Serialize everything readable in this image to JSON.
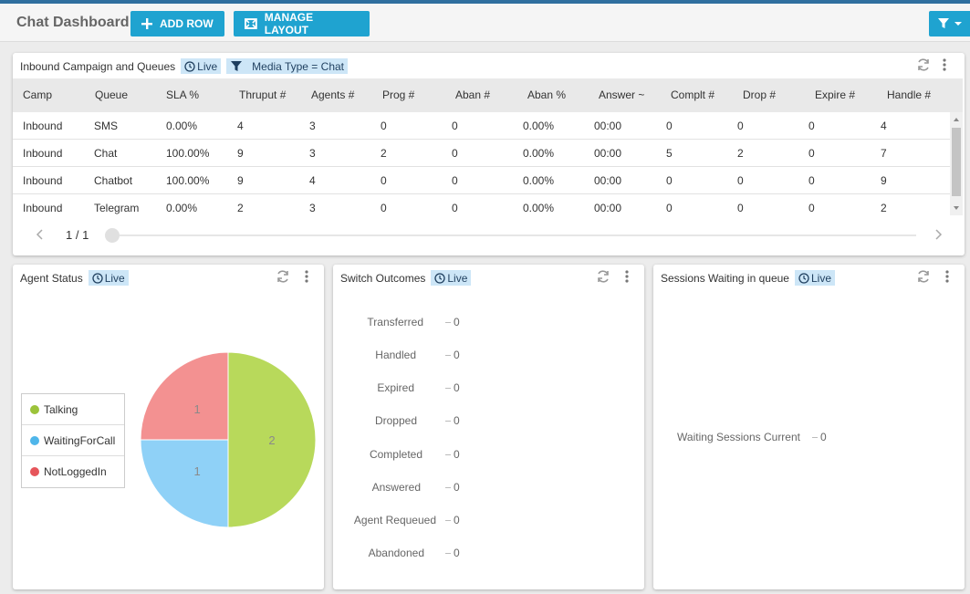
{
  "app": {
    "title": "Chat Dashboard",
    "accent": "#1fa3d0",
    "toolbar": {
      "add_row": "ADD ROW",
      "manage_layout": "MANAGE LAYOUT"
    }
  },
  "campaign_panel": {
    "title": "Inbound Campaign and Queues",
    "live": "Live",
    "filter_tag": "Media Type = Chat",
    "columns": [
      "Camp",
      "Queue",
      "SLA %",
      "Thruput #",
      "Agents #",
      "Prog #",
      "Aban #",
      "Aban %",
      "Answer ~",
      "Complt #",
      "Drop #",
      "Expire #",
      "Handle #"
    ],
    "rows": [
      [
        "Inbound",
        "SMS",
        "0.00%",
        "4",
        "3",
        "0",
        "0",
        "0.00%",
        "00:00",
        "0",
        "0",
        "0",
        "4"
      ],
      [
        "Inbound",
        "Chat",
        "100.00%",
        "9",
        "3",
        "2",
        "0",
        "0.00%",
        "00:00",
        "5",
        "2",
        "0",
        "7"
      ],
      [
        "Inbound",
        "Chatbot",
        "100.00%",
        "9",
        "4",
        "0",
        "0",
        "0.00%",
        "00:00",
        "0",
        "0",
        "0",
        "9"
      ],
      [
        "Inbound",
        "Telegram",
        "0.00%",
        "2",
        "3",
        "0",
        "0",
        "0.00%",
        "00:00",
        "0",
        "0",
        "0",
        "2"
      ]
    ],
    "pager": {
      "page": "1 / 1"
    }
  },
  "agent_status": {
    "title": "Agent Status",
    "live": "Live",
    "legend": [
      "Talking",
      "WaitingForCall",
      "NotLoggedIn"
    ]
  },
  "switch_outcomes": {
    "title": "Switch Outcomes",
    "live": "Live",
    "items": [
      {
        "label": "Transferred",
        "value": "0"
      },
      {
        "label": "Handled",
        "value": "0"
      },
      {
        "label": "Expired",
        "value": "0"
      },
      {
        "label": "Dropped",
        "value": "0"
      },
      {
        "label": "Completed",
        "value": "0"
      },
      {
        "label": "Answered",
        "value": "0"
      },
      {
        "label": "Agent Requeued",
        "value": "0"
      },
      {
        "label": "Abandoned",
        "value": "0"
      }
    ]
  },
  "sessions_waiting": {
    "title": "Sessions Waiting in queue",
    "live": "Live",
    "label": "Waiting Sessions Current",
    "value": "0"
  },
  "chart_data": [
    {
      "type": "pie",
      "categories": [
        "Talking",
        "WaitingForCall",
        "NotLoggedIn"
      ],
      "values": [
        2,
        1,
        1
      ],
      "colors": [
        "#b8d95b",
        "#8fd1f7",
        "#f39191"
      ]
    },
    {
      "type": "bar",
      "orientation": "horizontal",
      "categories": [
        "Transferred",
        "Handled",
        "Expired",
        "Dropped",
        "Completed",
        "Answered",
        "Agent Requeued",
        "Abandoned"
      ],
      "values": [
        0,
        0,
        0,
        0,
        0,
        0,
        0,
        0
      ]
    },
    {
      "type": "bar",
      "orientation": "horizontal",
      "categories": [
        "Waiting Sessions Current"
      ],
      "values": [
        0
      ]
    }
  ]
}
